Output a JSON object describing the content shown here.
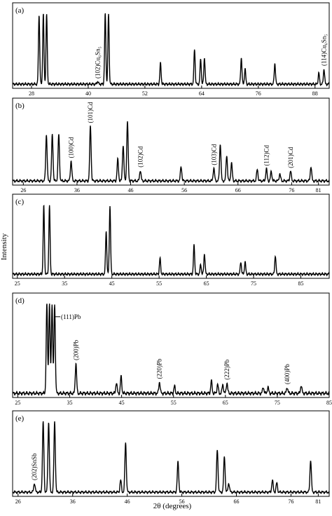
{
  "figure": {
    "ylabel": "Intensity",
    "xlabel": "2θ (degrees)"
  },
  "chart_data": [
    {
      "type": "line",
      "panel_label": "(a)",
      "xlim": [
        24,
        91
      ],
      "ticks": [
        28,
        40,
        52,
        64,
        76,
        88
      ],
      "peaks": [
        {
          "x": 29.6,
          "h": 1.0
        },
        {
          "x": 30.5,
          "h": 1.0
        },
        {
          "x": 31.2,
          "h": 1.0
        },
        {
          "x": 42.0,
          "h": 0.04
        },
        {
          "x": 43.6,
          "h": 1.0
        },
        {
          "x": 44.3,
          "h": 1.0
        },
        {
          "x": 55.3,
          "h": 0.3
        },
        {
          "x": 62.5,
          "h": 0.5
        },
        {
          "x": 63.8,
          "h": 0.36
        },
        {
          "x": 64.6,
          "h": 0.38
        },
        {
          "x": 72.4,
          "h": 0.38
        },
        {
          "x": 73.2,
          "h": 0.22
        },
        {
          "x": 79.5,
          "h": 0.3
        },
        {
          "x": 88.8,
          "h": 0.16
        },
        {
          "x": 89.9,
          "h": 0.22
        }
      ],
      "annotations": [
        {
          "text": "(102)Cu₆Sn₅",
          "x": 42.0,
          "h": 0.04
        },
        {
          "text": "(114)Cu₆Sn₅",
          "x": 89.9,
          "h": 0.22
        }
      ]
    },
    {
      "type": "line",
      "panel_label": "(b)",
      "xlim": [
        24,
        83
      ],
      "ticks": [
        26,
        36,
        46,
        56,
        66,
        76,
        81
      ],
      "peaks": [
        {
          "x": 30.3,
          "h": 0.65
        },
        {
          "x": 31.4,
          "h": 0.65
        },
        {
          "x": 32.6,
          "h": 0.65
        },
        {
          "x": 34.9,
          "h": 0.28
        },
        {
          "x": 38.5,
          "h": 0.77
        },
        {
          "x": 43.6,
          "h": 0.3
        },
        {
          "x": 44.6,
          "h": 0.5
        },
        {
          "x": 45.4,
          "h": 0.83
        },
        {
          "x": 47.8,
          "h": 0.15
        },
        {
          "x": 55.4,
          "h": 0.2
        },
        {
          "x": 61.5,
          "h": 0.18
        },
        {
          "x": 62.7,
          "h": 0.52
        },
        {
          "x": 63.9,
          "h": 0.36
        },
        {
          "x": 64.8,
          "h": 0.25
        },
        {
          "x": 69.6,
          "h": 0.16
        },
        {
          "x": 71.3,
          "h": 0.17
        },
        {
          "x": 72.2,
          "h": 0.13
        },
        {
          "x": 73.8,
          "h": 0.1
        },
        {
          "x": 75.8,
          "h": 0.14
        },
        {
          "x": 79.6,
          "h": 0.2
        }
      ],
      "annotations": [
        {
          "text": "(100)Cd",
          "x": 34.9,
          "h": 0.28
        },
        {
          "text": "(101)Cd",
          "x": 38.5,
          "h": 0.77
        },
        {
          "text": "(102)Cd",
          "x": 47.8,
          "h": 0.15
        },
        {
          "text": "(103)Cd",
          "x": 61.5,
          "h": 0.18
        },
        {
          "text": "(112)Cd",
          "x": 71.3,
          "h": 0.17
        },
        {
          "text": "(201)Cd",
          "x": 75.8,
          "h": 0.14
        }
      ]
    },
    {
      "type": "line",
      "panel_label": "(c)",
      "xlim": [
        24,
        91
      ],
      "ticks": [
        25,
        35,
        45,
        55,
        65,
        75,
        85
      ],
      "peaks": [
        {
          "x": 30.6,
          "h": 1.0
        },
        {
          "x": 31.8,
          "h": 1.0
        },
        {
          "x": 43.8,
          "h": 0.63
        },
        {
          "x": 44.6,
          "h": 1.0
        },
        {
          "x": 55.2,
          "h": 0.23
        },
        {
          "x": 62.4,
          "h": 0.42
        },
        {
          "x": 63.8,
          "h": 0.14
        },
        {
          "x": 64.6,
          "h": 0.3
        },
        {
          "x": 72.3,
          "h": 0.18
        },
        {
          "x": 73.2,
          "h": 0.18
        },
        {
          "x": 79.6,
          "h": 0.27
        }
      ],
      "annotations": []
    },
    {
      "type": "line",
      "panel_label": "(d)",
      "xlim": [
        24,
        85
      ],
      "ticks": [
        25,
        35,
        45,
        55,
        65,
        75,
        85
      ],
      "peaks": [
        {
          "x": 30.6,
          "h": 1.0
        },
        {
          "x": 31.1,
          "h": 1.0
        },
        {
          "x": 31.6,
          "h": 1.0
        },
        {
          "x": 32.1,
          "h": 1.0
        },
        {
          "x": 36.2,
          "h": 0.34
        },
        {
          "x": 44.0,
          "h": 0.12
        },
        {
          "x": 44.9,
          "h": 0.19
        },
        {
          "x": 52.3,
          "h": 0.13
        },
        {
          "x": 55.2,
          "h": 0.08
        },
        {
          "x": 62.3,
          "h": 0.14
        },
        {
          "x": 63.5,
          "h": 0.1
        },
        {
          "x": 64.5,
          "h": 0.1
        },
        {
          "x": 65.3,
          "h": 0.12
        },
        {
          "x": 72.3,
          "h": 0.07
        },
        {
          "x": 73.2,
          "h": 0.07
        },
        {
          "x": 76.9,
          "h": 0.07
        },
        {
          "x": 79.6,
          "h": 0.09
        }
      ],
      "annotations": [
        {
          "text": "(111)Pb",
          "x": 32.1,
          "h": 1.0,
          "style": "side"
        },
        {
          "text": "(200)Pb",
          "x": 36.2,
          "h": 0.34
        },
        {
          "text": "(220)Pb",
          "x": 52.3,
          "h": 0.13
        },
        {
          "text": "(222)Pb",
          "x": 65.3,
          "h": 0.12
        },
        {
          "text": "(400)Pb",
          "x": 76.9,
          "h": 0.07
        }
      ]
    },
    {
      "type": "line",
      "panel_label": "(e)",
      "xlim": [
        25,
        83
      ],
      "ticks": [
        26,
        36,
        46,
        56,
        66,
        76,
        81
      ],
      "peaks": [
        {
          "x": 29.0,
          "h": 0.13
        },
        {
          "x": 30.6,
          "h": 1.0
        },
        {
          "x": 31.6,
          "h": 1.0
        },
        {
          "x": 32.7,
          "h": 1.0
        },
        {
          "x": 44.8,
          "h": 0.17
        },
        {
          "x": 45.7,
          "h": 0.71
        },
        {
          "x": 55.3,
          "h": 0.43
        },
        {
          "x": 62.5,
          "h": 0.61
        },
        {
          "x": 63.8,
          "h": 0.51
        },
        {
          "x": 64.6,
          "h": 0.13
        },
        {
          "x": 72.6,
          "h": 0.17
        },
        {
          "x": 73.4,
          "h": 0.13
        },
        {
          "x": 79.6,
          "h": 0.46
        }
      ],
      "annotations": [
        {
          "text": "(202)SnSb",
          "x": 29.0,
          "h": 0.13
        }
      ]
    }
  ]
}
